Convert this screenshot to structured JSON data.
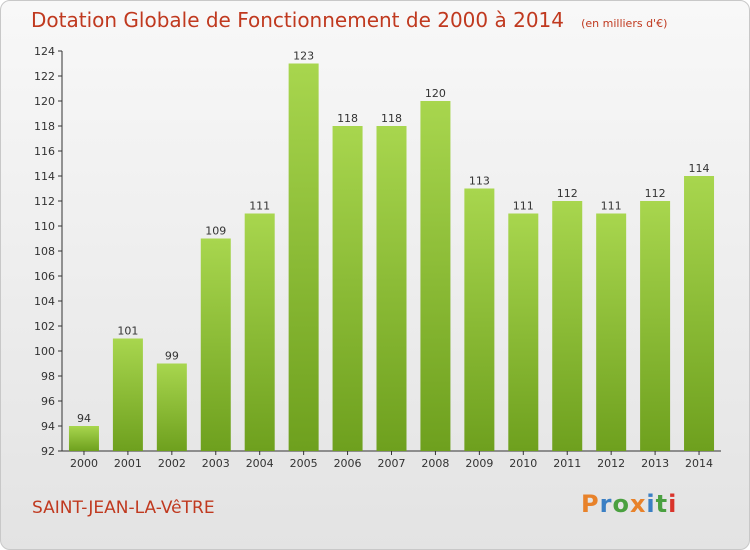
{
  "title": "Dotation Globale de Fonctionnement de 2000 à 2014",
  "unit": "(en milliers d'€)",
  "commune": "SAINT-JEAN-LA-VêTRE",
  "logo": {
    "letters": [
      "P",
      "r",
      "o",
      "x",
      "i",
      "t",
      "i"
    ],
    "colors": [
      "#e8822a",
      "#3a7fc4",
      "#4aa040",
      "#e8822a",
      "#3a7fc4",
      "#4aa040",
      "#d9342b"
    ]
  },
  "colors": {
    "bar_light": "#a8d64e",
    "bar_dark": "#6ea01e",
    "text": "#c0391f",
    "axis": "#333333"
  },
  "chart_data": {
    "type": "bar",
    "title": "Dotation Globale de Fonctionnement de 2000 à 2014",
    "subtitle": "(en milliers d'€)",
    "xlabel": "",
    "ylabel": "",
    "categories": [
      "2000",
      "2001",
      "2002",
      "2003",
      "2004",
      "2005",
      "2006",
      "2007",
      "2008",
      "2009",
      "2010",
      "2011",
      "2012",
      "2013",
      "2014"
    ],
    "values": [
      94,
      101,
      99,
      109,
      111,
      123,
      118,
      118,
      120,
      113,
      111,
      112,
      111,
      112,
      114
    ],
    "ylim": [
      92,
      124
    ],
    "yticks": [
      92,
      94,
      96,
      98,
      100,
      102,
      104,
      106,
      108,
      110,
      112,
      114,
      116,
      118,
      120,
      122,
      124
    ],
    "grid": false,
    "legend": "none"
  }
}
